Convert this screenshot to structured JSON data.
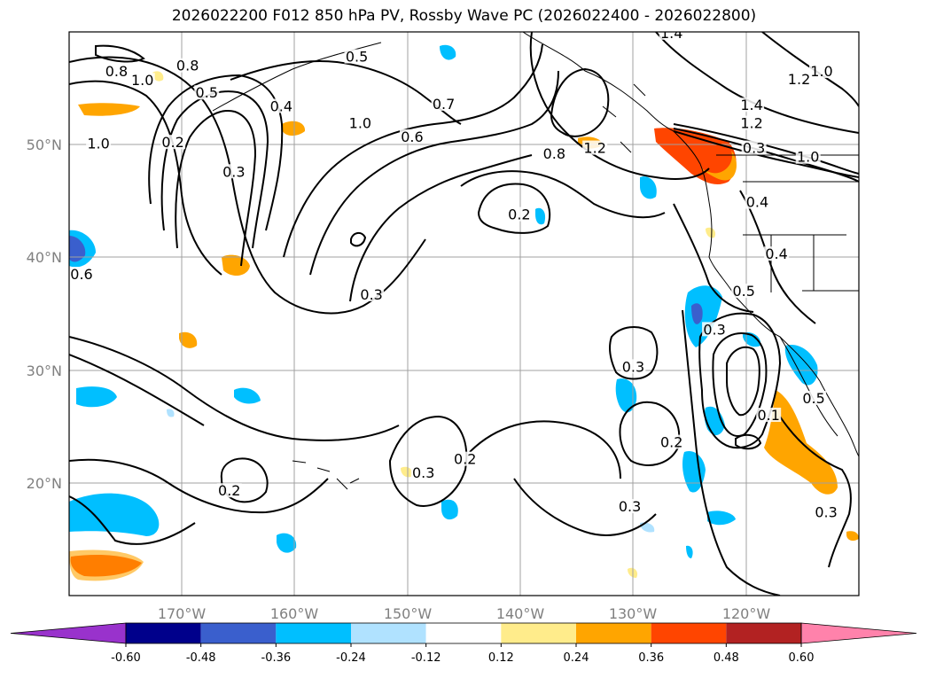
{
  "chart_data": {
    "type": "contour-map",
    "title": "2026022200 F012 850 hPa PV, Rossby Wave PC (2026022400 - 2026022800)",
    "lon_ticks": [
      "170°W",
      "160°W",
      "150°W",
      "140°W",
      "130°W",
      "120°W"
    ],
    "lat_ticks": [
      "50°N",
      "40°N",
      "30°N",
      "20°N"
    ],
    "lon_range": [
      -180,
      -110
    ],
    "lat_range": [
      10,
      60
    ],
    "grid": true,
    "colorbar": {
      "orientation": "horizontal",
      "extend": "both",
      "levels": [
        "-0.60",
        "-0.48",
        "-0.36",
        "-0.24",
        "-0.12",
        "0.12",
        "0.24",
        "0.36",
        "0.48",
        "0.60"
      ],
      "colors": [
        "#9932cc",
        "#00008b",
        "#3a5fcd",
        "#00bfff",
        "#b0e2ff",
        "#ffffff",
        "#ffec8b",
        "#ffa500",
        "#ff4500",
        "#b22222",
        "#ff82ab"
      ]
    },
    "contour_labels": [
      {
        "text": "0.8",
        "lon": -175.8,
        "lat": 56.3
      },
      {
        "text": "1.0",
        "lon": -173.5,
        "lat": 55.5
      },
      {
        "text": "0.8",
        "lon": -169.5,
        "lat": 56.8
      },
      {
        "text": "0.5",
        "lon": -167.8,
        "lat": 54.4
      },
      {
        "text": "0.5",
        "lon": -154.5,
        "lat": 57.6
      },
      {
        "text": "1.0",
        "lon": -177.4,
        "lat": 49.9
      },
      {
        "text": "0.2",
        "lon": -170.8,
        "lat": 50.0
      },
      {
        "text": "0.4",
        "lon": -161.2,
        "lat": 53.2
      },
      {
        "text": "0.3",
        "lon": -165.4,
        "lat": 47.4
      },
      {
        "text": "1.0",
        "lon": -154.2,
        "lat": 51.7
      },
      {
        "text": "0.6",
        "lon": -149.6,
        "lat": 50.5
      },
      {
        "text": "0.7",
        "lon": -146.8,
        "lat": 53.4
      },
      {
        "text": "1.4",
        "lon": -126.6,
        "lat": 59.7
      },
      {
        "text": "1.0",
        "lon": -113.3,
        "lat": 56.3
      },
      {
        "text": "1.2",
        "lon": -115.3,
        "lat": 55.6
      },
      {
        "text": "1.4",
        "lon": -119.5,
        "lat": 53.3
      },
      {
        "text": "1.2",
        "lon": -119.5,
        "lat": 51.7
      },
      {
        "text": "0.8",
        "lon": -137.0,
        "lat": 49.0
      },
      {
        "text": "1.2",
        "lon": -133.4,
        "lat": 49.5
      },
      {
        "text": "0.3",
        "lon": -119.3,
        "lat": 49.5
      },
      {
        "text": "1.0",
        "lon": -114.5,
        "lat": 48.7
      },
      {
        "text": "0.4",
        "lon": -119.0,
        "lat": 44.7
      },
      {
        "text": "0.4",
        "lon": -117.3,
        "lat": 40.1
      },
      {
        "text": "0.2",
        "lon": -140.1,
        "lat": 43.6
      },
      {
        "text": "0.6",
        "lon": -178.9,
        "lat": 38.3
      },
      {
        "text": "0.3",
        "lon": -153.2,
        "lat": 36.5
      },
      {
        "text": "0.5",
        "lon": -120.2,
        "lat": 36.8
      },
      {
        "text": "0.3",
        "lon": -122.8,
        "lat": 33.4
      },
      {
        "text": "0.3",
        "lon": -130.0,
        "lat": 30.1
      },
      {
        "text": "0.1",
        "lon": -118.0,
        "lat": 25.8
      },
      {
        "text": "0.5",
        "lon": -114.0,
        "lat": 27.3
      },
      {
        "text": "0.2",
        "lon": -126.6,
        "lat": 23.4
      },
      {
        "text": "0.2",
        "lon": -144.9,
        "lat": 21.9
      },
      {
        "text": "0.3",
        "lon": -148.6,
        "lat": 20.7
      },
      {
        "text": "0.2",
        "lon": -165.8,
        "lat": 19.1
      },
      {
        "text": "0.3",
        "lon": -130.3,
        "lat": 17.7
      },
      {
        "text": "0.3",
        "lon": -112.9,
        "lat": 17.2
      }
    ]
  }
}
